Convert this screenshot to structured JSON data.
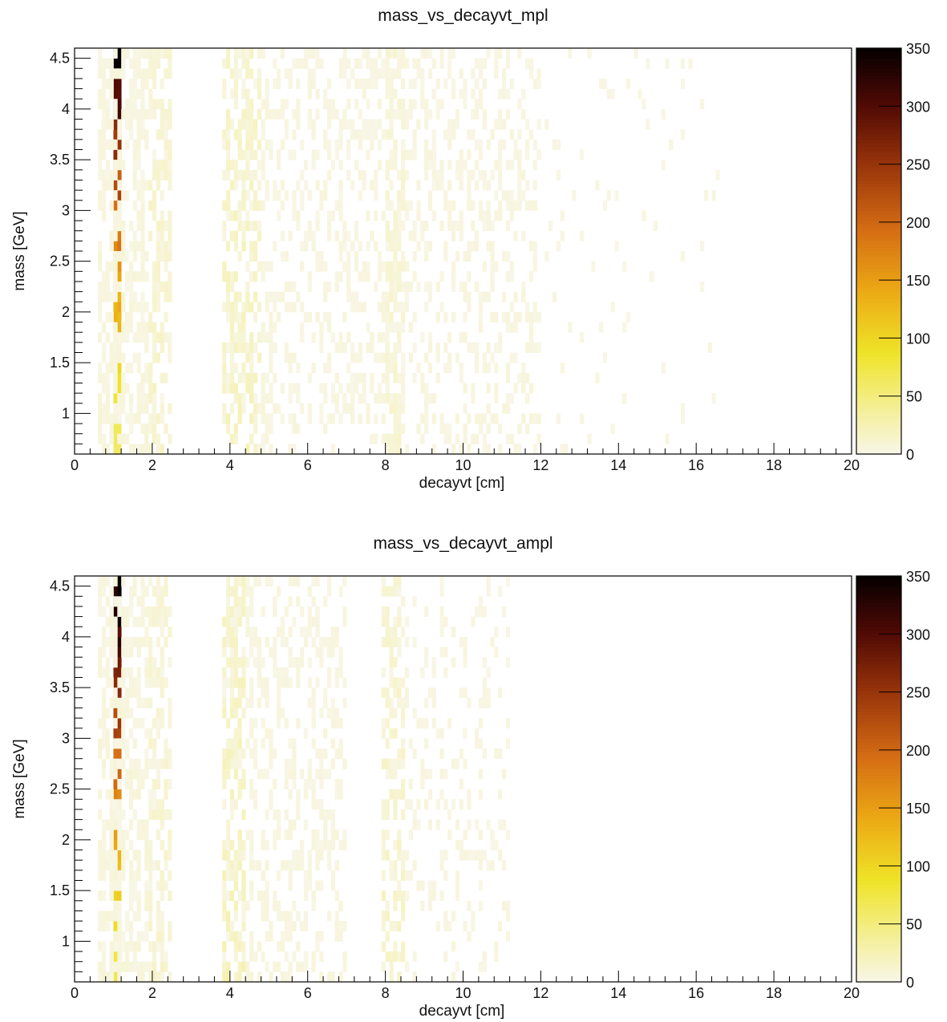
{
  "chart_data": [
    {
      "type": "heatmap",
      "title": "mass_vs_decayvt_mpl",
      "xlabel": "decayvt [cm]",
      "ylabel": "mass [GeV]",
      "xlim": [
        0,
        20
      ],
      "ylim": [
        0.6,
        4.6
      ],
      "x_ticks": [
        "0",
        "2",
        "4",
        "6",
        "8",
        "10",
        "12",
        "14",
        "16",
        "18",
        "20"
      ],
      "y_ticks": [
        "1",
        "1.5",
        "2",
        "2.5",
        "3",
        "3.5",
        "4",
        "4.5"
      ],
      "colorbar": {
        "min": 0,
        "max": 350,
        "ticks": [
          "0",
          "50",
          "100",
          "150",
          "200",
          "250",
          "300",
          "350"
        ]
      },
      "bins": {
        "x_width": 0.1,
        "y_width": 0.1
      },
      "grid": false,
      "seed": 1,
      "clusters": [
        {
          "x": [
            1.0,
            1.2
          ],
          "count_low": 60,
          "count_high": 330
        },
        {
          "x": [
            0.6,
            1.9
          ],
          "count_high": 8,
          "occupancy": 0.6
        },
        {
          "x": [
            1.9,
            2.5
          ],
          "count_high": 18,
          "occupancy": 0.5
        },
        {
          "x": [
            3.8,
            4.8
          ],
          "count_high": 25,
          "occupancy": 0.55
        },
        {
          "x": [
            4.8,
            12.0
          ],
          "count_high": 6,
          "occupancy": 0.32
        },
        {
          "x": [
            8.0,
            8.5
          ],
          "count_high": 14,
          "occupancy": 0.45
        },
        {
          "x": [
            12.0,
            16.6
          ],
          "count_high": 3,
          "occupancy": 0.04
        }
      ]
    },
    {
      "type": "heatmap",
      "title": "mass_vs_decayvt_ampl",
      "xlabel": "decayvt [cm]",
      "ylabel": "mass [GeV]",
      "xlim": [
        0,
        20
      ],
      "ylim": [
        0.6,
        4.6
      ],
      "x_ticks": [
        "0",
        "2",
        "4",
        "6",
        "8",
        "10",
        "12",
        "14",
        "16",
        "18",
        "20"
      ],
      "y_ticks": [
        "1",
        "1.5",
        "2",
        "2.5",
        "3",
        "3.5",
        "4",
        "4.5"
      ],
      "colorbar": {
        "min": 0,
        "max": 350,
        "ticks": [
          "0",
          "50",
          "100",
          "150",
          "200",
          "250",
          "300",
          "350"
        ]
      },
      "bins": {
        "x_width": 0.1,
        "y_width": 0.1
      },
      "grid": false,
      "seed": 7,
      "clusters": [
        {
          "x": [
            1.0,
            1.2
          ],
          "count_low": 70,
          "count_high": 350
        },
        {
          "x": [
            0.6,
            1.9
          ],
          "count_high": 8,
          "occupancy": 0.55
        },
        {
          "x": [
            1.9,
            2.5
          ],
          "count_high": 16,
          "occupancy": 0.5
        },
        {
          "x": [
            3.8,
            4.4
          ],
          "count_high": 28,
          "occupancy": 0.6
        },
        {
          "x": [
            4.4,
            7.0
          ],
          "count_high": 6,
          "occupancy": 0.35
        },
        {
          "x": [
            7.9,
            8.5
          ],
          "count_high": 20,
          "occupancy": 0.55
        },
        {
          "x": [
            8.5,
            11.2
          ],
          "count_high": 5,
          "occupancy": 0.2
        }
      ]
    }
  ]
}
